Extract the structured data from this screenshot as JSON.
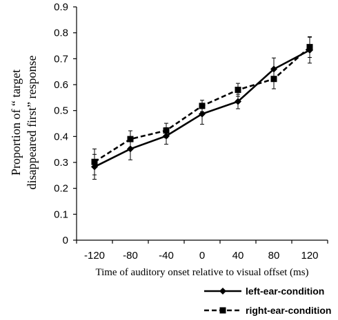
{
  "chart_data": {
    "type": "line",
    "title": "",
    "xlabel": "Time of auditory onset relative to visual offset (ms)",
    "ylabel_line1": "Proportion of “ target",
    "ylabel_line2": "disappeared first” response",
    "x": [
      -120,
      -80,
      -40,
      0,
      40,
      80,
      120
    ],
    "x_tick_labels": [
      "-120",
      "-80",
      "-40",
      "0",
      "40",
      "80",
      "120"
    ],
    "ylim": [
      0,
      0.9
    ],
    "y_ticks": [
      0,
      0.1,
      0.2,
      0.3,
      0.4,
      0.5,
      0.6,
      0.7,
      0.8,
      0.9
    ],
    "y_tick_labels": [
      "0",
      "0.1",
      "0.2",
      "0.3",
      "0.4",
      "0.5",
      "0.6",
      "0.7",
      "0.8",
      "0.9"
    ],
    "grid": false,
    "legend_position": "bottom-right",
    "series": [
      {
        "name": "left-ear-condition",
        "style": "solid",
        "marker": "diamond",
        "color": "#000000",
        "values": [
          0.283,
          0.352,
          0.402,
          0.487,
          0.535,
          0.66,
          0.733
        ],
        "errors": [
          0.048,
          0.042,
          0.032,
          0.04,
          0.028,
          0.043,
          0.05
        ]
      },
      {
        "name": "right-ear-condition",
        "style": "dashed",
        "marker": "square",
        "color": "#000000",
        "values": [
          0.302,
          0.39,
          0.423,
          0.518,
          0.58,
          0.622,
          0.745
        ],
        "errors": [
          0.05,
          0.032,
          0.028,
          0.022,
          0.025,
          0.038,
          0.04
        ]
      }
    ]
  }
}
